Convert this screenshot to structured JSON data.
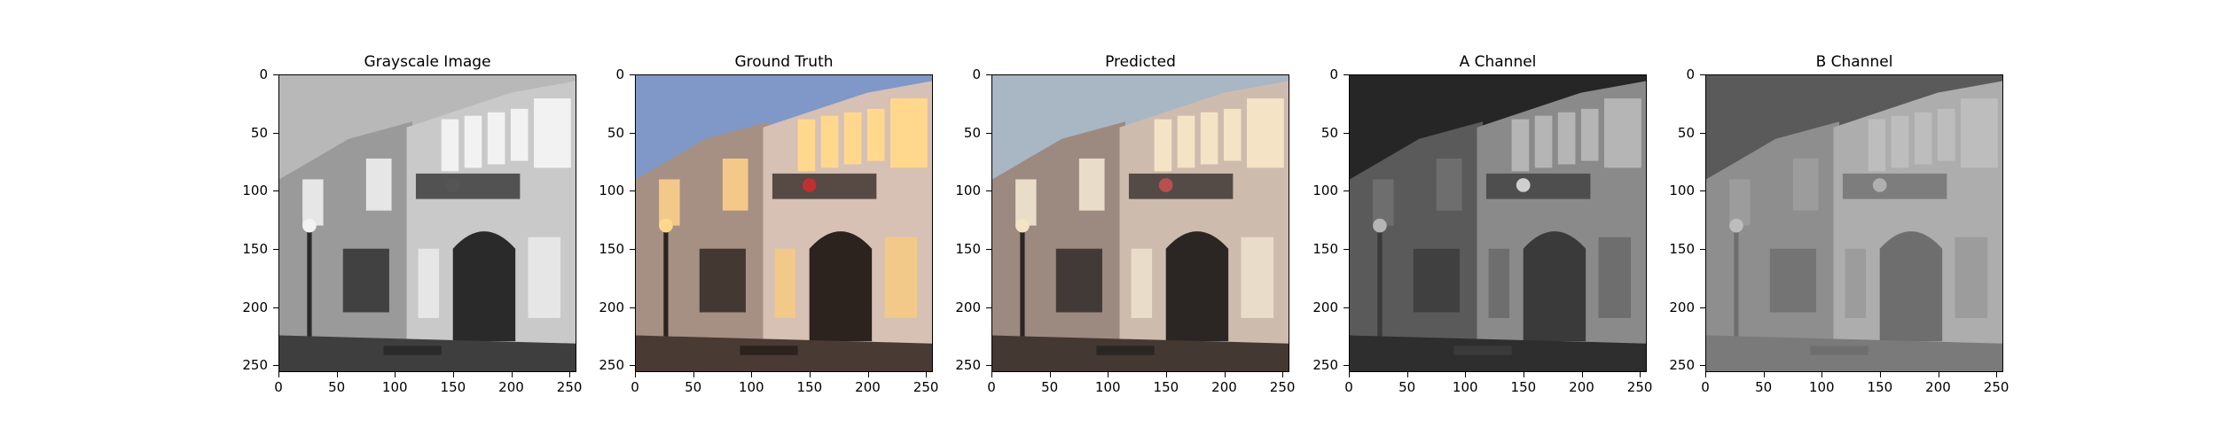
{
  "panels": [
    {
      "title": "Grayscale Image",
      "kind": "gray"
    },
    {
      "title": "Ground Truth",
      "kind": "color"
    },
    {
      "title": "Predicted",
      "kind": "pred"
    },
    {
      "title": "A Channel",
      "kind": "a"
    },
    {
      "title": "B Channel",
      "kind": "b"
    }
  ],
  "ticks": {
    "y": [
      "0",
      "50",
      "100",
      "150",
      "200",
      "250"
    ],
    "x": [
      "0",
      "50",
      "100",
      "150",
      "200",
      "250"
    ]
  }
}
